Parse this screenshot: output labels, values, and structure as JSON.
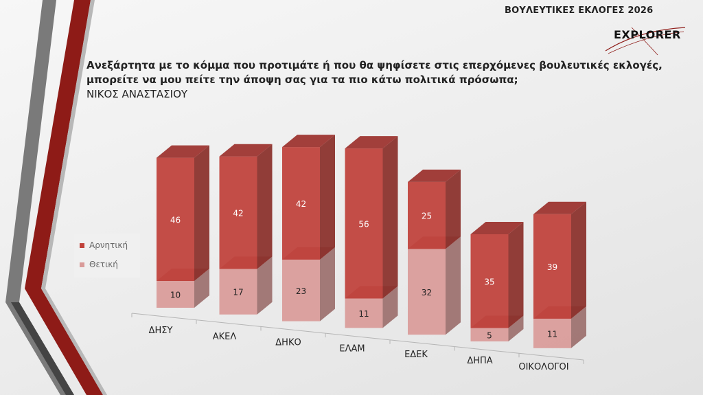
{
  "header": {
    "title": "ΒΟΥΛΕΥΤΙΚΕΣ ΕΚΛΟΓΕΣ 2026",
    "logo_text": "EXPLORER"
  },
  "question": {
    "line1": "Ανεξάρτητα με το κόμμα που προτιμάτε ή που θα ψηφίσετε στις επερχόμενες βουλευτικές εκλογές,",
    "line2": "μπορείτε να μου πείτε την άποψη σας για τα πιο κάτω πολιτικά πρόσωπα;",
    "subject": "ΝΙΚΟΣ ΑΝΑΣΤΑΣΙΟΥ"
  },
  "colors": {
    "negative": "#c0413a",
    "positive": "#d99b99"
  },
  "legend": [
    {
      "label": "Αρνητική",
      "color": "#c0413a"
    },
    {
      "label": "Θετική",
      "color": "#d99b99"
    }
  ],
  "chart_data": {
    "type": "bar",
    "stacked": true,
    "three_d": true,
    "categories": [
      "ΔΗΣΥ",
      "ΑΚΕΛ",
      "ΔΗΚΟ",
      "ΕΛΑΜ",
      "ΕΔΕΚ",
      "ΔΗΠΑ",
      "ΟΙΚΟΛΟΓΟΙ"
    ],
    "series": [
      {
        "name": "Θετική",
        "values": [
          10,
          17,
          23,
          11,
          32,
          5,
          11
        ]
      },
      {
        "name": "Αρνητική",
        "values": [
          46,
          42,
          42,
          56,
          25,
          35,
          39
        ]
      }
    ],
    "legend_position": "left",
    "grid": false
  }
}
